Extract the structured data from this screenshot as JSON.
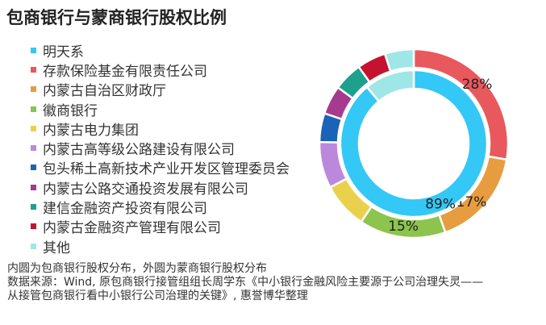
{
  "title": "包商银行与蒙商银行股权比例",
  "chart_data": {
    "type": "pie",
    "title": "包商银行与蒙商银行股权比例",
    "categories": [
      "明天系",
      "存款保险基金有限责任公司",
      "内蒙古自治区财政厅",
      "徽商银行",
      "内蒙古电力集团",
      "内蒙古高等级公路建设有限公司",
      "包头稀土高新技术产业开发区管理委员会",
      "内蒙古公路交通投资发展有限公司",
      "建信金融资产投资有限公司",
      "内蒙古金融资产管理有限公司",
      "其他"
    ],
    "colors": [
      "#33c8f5",
      "#e9585c",
      "#e79d3f",
      "#8cc44e",
      "#ead14c",
      "#bb88dc",
      "#1b63b6",
      "#a63a8e",
      "#1ea08e",
      "#c41230",
      "#9fe6e6"
    ],
    "series": [
      {
        "name": "内圆为包商银行股权分布",
        "values": [
          89,
          0,
          0,
          0,
          0,
          0,
          0,
          0,
          0,
          0,
          11
        ],
        "labels": [
          "89%",
          "",
          "",
          "",
          "",
          "",
          "",
          "",
          "",
          "",
          ""
        ]
      },
      {
        "name": "外圆为蒙商银行股权分布",
        "values": [
          0,
          28,
          17,
          15,
          8,
          8,
          5,
          5,
          5,
          5,
          5
        ],
        "labels": [
          "",
          "28%",
          "17%",
          "15%",
          "",
          "",
          "",
          "",
          "",
          "",
          ""
        ]
      }
    ],
    "legend": "left"
  },
  "notes": {
    "line1": "内圆为包商银行股权分布，外圆为蒙商银行股权分布",
    "line2": "数据来源：Wind, 原包商银行接管组组长周学东《中小银行金融风险主要源于公司治理失灵——",
    "line3": "从接管包商银行看中小银行公司治理的关键》, 惠誉博华整理"
  }
}
